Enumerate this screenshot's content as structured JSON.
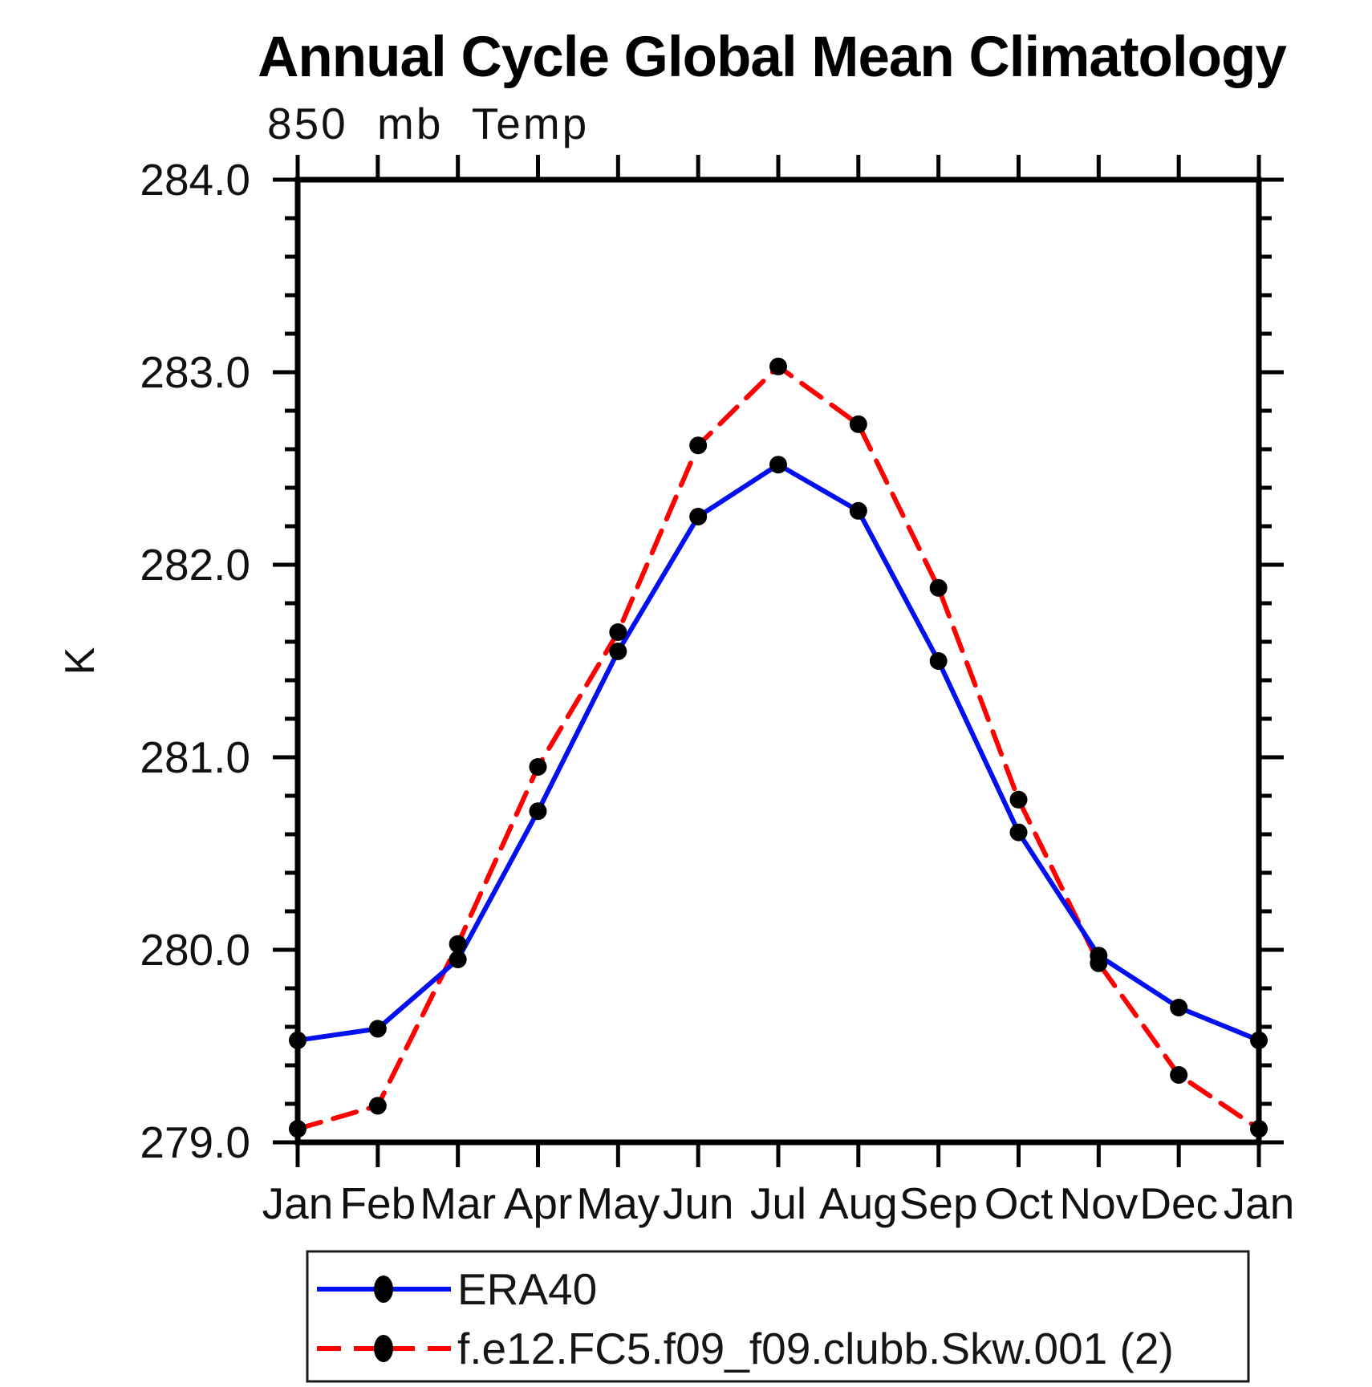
{
  "title": "Annual Cycle Global Mean Climatology",
  "chart_data": {
    "type": "line",
    "title": "Annual Cycle Global Mean Climatology",
    "subtitle": "850 mb Temp",
    "ylabel": "K",
    "xlabel": "",
    "x_categories": [
      "Jan",
      "Feb",
      "Mar",
      "Apr",
      "May",
      "Jun",
      "Jul",
      "Aug",
      "Sep",
      "Oct",
      "Nov",
      "Dec",
      "Jan"
    ],
    "ylim": [
      279.0,
      284.0
    ],
    "ytick_labels": [
      "284.0",
      "283.0",
      "282.0",
      "281.0",
      "280.0",
      "279.0"
    ],
    "ytick_values": [
      284.0,
      283.0,
      282.0,
      281.0,
      280.0,
      279.0
    ],
    "ytick_minor_interval": 0.2,
    "grid": false,
    "legend_position": "bottom",
    "axis_color": "#000000",
    "marker_color": "#000000",
    "series": [
      {
        "name": "ERA40",
        "color": "#0010EE",
        "line_style": "solid",
        "marker": "filled-circle",
        "values": [
          279.53,
          279.59,
          279.95,
          280.72,
          281.55,
          282.25,
          282.52,
          282.28,
          281.5,
          280.61,
          279.97,
          279.7,
          279.53
        ]
      },
      {
        "name": "f.e12.FC5.f09_f09.clubb.Skw.001 (2)",
        "color": "#FF0000",
        "line_style": "dashed",
        "marker": "filled-circle",
        "values": [
          279.07,
          279.19,
          280.03,
          280.95,
          281.65,
          282.62,
          283.03,
          282.73,
          281.88,
          280.78,
          279.93,
          279.35,
          279.07
        ]
      }
    ]
  }
}
